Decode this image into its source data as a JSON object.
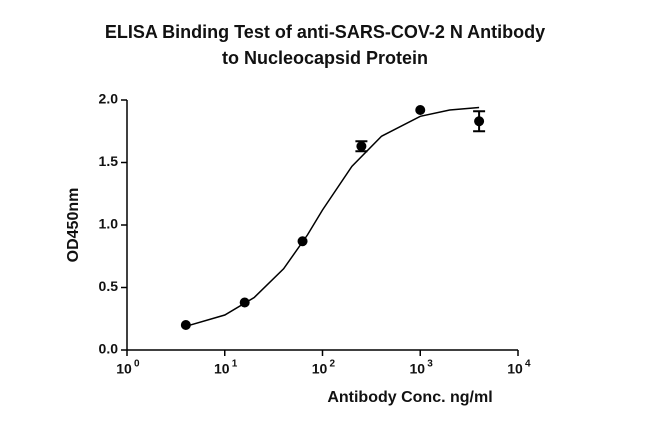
{
  "chart_data": {
    "type": "scatter",
    "title": [
      "ELISA Binding Test of anti-SARS-COV-2 N Antibody",
      "to Nucleocapsid Protein"
    ],
    "xlabel": "Antibody Conc. ng/ml",
    "ylabel": "OD450nm",
    "x": [
      4,
      16,
      62.5,
      250,
      1000,
      4000
    ],
    "series": [
      {
        "color": "#000000",
        "values": [
          0.2,
          0.38,
          0.87,
          1.63,
          1.92,
          1.83
        ],
        "errors": [
          null,
          null,
          null,
          0.04,
          null,
          0.08
        ]
      }
    ],
    "fit": {
      "color": "#000000",
      "x": [
        4,
        10,
        20,
        40,
        70,
        100,
        200,
        400,
        1000,
        2000,
        4000
      ],
      "values": [
        0.19,
        0.28,
        0.42,
        0.65,
        0.92,
        1.12,
        1.47,
        1.71,
        1.87,
        1.92,
        1.94
      ]
    },
    "xscale": "log",
    "xlim": [
      1,
      10000
    ],
    "xticks": [
      {
        "value": 1,
        "label": "10",
        "exponent": "0"
      },
      {
        "value": 10,
        "label": "10",
        "exponent": "1"
      },
      {
        "value": 100,
        "label": "10",
        "exponent": "2"
      },
      {
        "value": 1000,
        "label": "10",
        "exponent": "3"
      },
      {
        "value": 10000,
        "label": "10",
        "exponent": "4"
      }
    ],
    "ylim": [
      0,
      2
    ],
    "yticks": [
      {
        "value": 0,
        "label": "0.0"
      },
      0.5,
      {
        "value": 1,
        "label": "1.0"
      },
      1.5,
      {
        "value": 2,
        "label": "2.0"
      }
    ],
    "grid": false
  }
}
